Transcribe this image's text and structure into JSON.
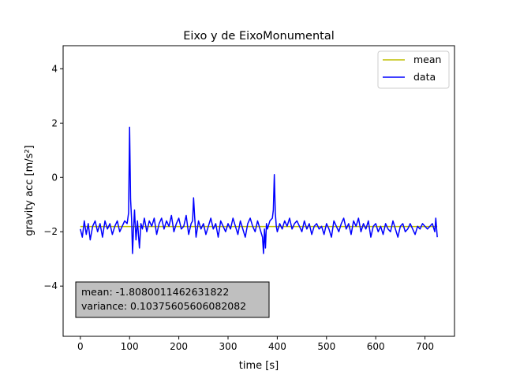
{
  "chart_data": {
    "type": "line",
    "title": "Eixo y de EixoMonumental",
    "xlabel": "time [s]",
    "ylabel": "gravity acc [m/s²]",
    "xlim": [
      -35,
      760
    ],
    "ylim": [
      -5.85,
      4.85
    ],
    "xticks": [
      0,
      100,
      200,
      300,
      400,
      500,
      600,
      700
    ],
    "yticks": [
      -4,
      -2,
      0,
      2,
      4
    ],
    "grid": false,
    "legend_position": "upper right",
    "series": [
      {
        "name": "mean",
        "color": "#bfbf00",
        "x": [
          0,
          725
        ],
        "y": [
          -1.8080011462631822,
          -1.8080011462631822
        ]
      },
      {
        "name": "data",
        "color": "#0000ff",
        "x": [
          0,
          4,
          8,
          12,
          16,
          20,
          25,
          30,
          35,
          40,
          45,
          50,
          55,
          60,
          65,
          70,
          75,
          80,
          85,
          90,
          95,
          98,
          100,
          102,
          104,
          106,
          108,
          110,
          113,
          116,
          120,
          123,
          126,
          130,
          135,
          140,
          145,
          150,
          155,
          160,
          165,
          170,
          175,
          180,
          185,
          190,
          195,
          200,
          205,
          210,
          215,
          220,
          225,
          228,
          230,
          232,
          235,
          240,
          245,
          250,
          255,
          260,
          265,
          270,
          275,
          280,
          285,
          290,
          295,
          300,
          305,
          310,
          315,
          320,
          325,
          330,
          335,
          340,
          345,
          350,
          355,
          360,
          365,
          370,
          372,
          374,
          376,
          378,
          380,
          385,
          390,
          392,
          394,
          396,
          398,
          400,
          405,
          410,
          415,
          420,
          425,
          430,
          435,
          440,
          445,
          450,
          455,
          460,
          465,
          470,
          475,
          480,
          485,
          490,
          495,
          500,
          505,
          510,
          515,
          520,
          525,
          530,
          535,
          540,
          545,
          550,
          555,
          560,
          565,
          570,
          575,
          580,
          585,
          590,
          595,
          600,
          605,
          610,
          615,
          620,
          625,
          630,
          635,
          640,
          645,
          650,
          655,
          660,
          665,
          670,
          675,
          680,
          685,
          690,
          695,
          700,
          705,
          710,
          715,
          720,
          722,
          725
        ],
        "y": [
          -1.9,
          -2.2,
          -1.6,
          -2.1,
          -1.7,
          -2.3,
          -1.8,
          -1.6,
          -2.0,
          -1.7,
          -2.2,
          -1.6,
          -1.9,
          -1.7,
          -2.1,
          -1.8,
          -1.6,
          -2.0,
          -1.8,
          -1.6,
          -1.7,
          -1.3,
          1.85,
          -0.8,
          -1.5,
          -2.8,
          -1.9,
          -1.2,
          -2.3,
          -1.6,
          -2.6,
          -1.7,
          -1.9,
          -1.5,
          -2.0,
          -1.6,
          -1.8,
          -1.5,
          -2.1,
          -1.7,
          -1.5,
          -1.9,
          -1.6,
          -1.8,
          -1.4,
          -2.0,
          -1.7,
          -1.5,
          -1.9,
          -1.8,
          -1.4,
          -2.1,
          -1.7,
          -1.6,
          -0.75,
          -1.4,
          -2.2,
          -1.6,
          -1.9,
          -1.7,
          -2.1,
          -1.8,
          -1.5,
          -1.9,
          -1.7,
          -2.2,
          -1.6,
          -1.8,
          -2.0,
          -1.7,
          -1.9,
          -1.5,
          -1.8,
          -2.1,
          -1.6,
          -1.9,
          -2.2,
          -1.7,
          -1.5,
          -1.8,
          -2.0,
          -1.6,
          -1.9,
          -2.2,
          -2.8,
          -1.9,
          -2.6,
          -1.7,
          -1.9,
          -1.6,
          -1.5,
          -1.2,
          0.1,
          -1.3,
          -1.8,
          -2.0,
          -1.7,
          -1.9,
          -1.6,
          -1.8,
          -1.5,
          -1.9,
          -1.7,
          -1.6,
          -1.8,
          -2.0,
          -1.6,
          -1.9,
          -1.7,
          -2.1,
          -1.8,
          -1.7,
          -1.9,
          -1.8,
          -2.1,
          -1.7,
          -1.9,
          -2.2,
          -1.6,
          -1.8,
          -2.0,
          -1.7,
          -1.5,
          -1.9,
          -1.7,
          -2.1,
          -1.6,
          -1.8,
          -1.5,
          -2.0,
          -1.7,
          -1.9,
          -1.6,
          -2.2,
          -1.8,
          -1.7,
          -2.0,
          -1.8,
          -2.1,
          -1.7,
          -1.9,
          -2.0,
          -1.6,
          -1.9,
          -2.2,
          -1.8,
          -1.7,
          -2.0,
          -1.9,
          -1.7,
          -1.9,
          -2.1,
          -1.8,
          -1.9,
          -1.7,
          -1.8,
          -1.9,
          -1.8,
          -1.7,
          -2.0,
          -1.5,
          -2.2
        ]
      }
    ],
    "legend": [
      "mean",
      "data"
    ],
    "annotation": {
      "lines": [
        "mean: -1.8080011462631822",
        "variance: 0.10375605606082082"
      ],
      "position": "bottom-left",
      "background": "#bfbfbf"
    }
  }
}
